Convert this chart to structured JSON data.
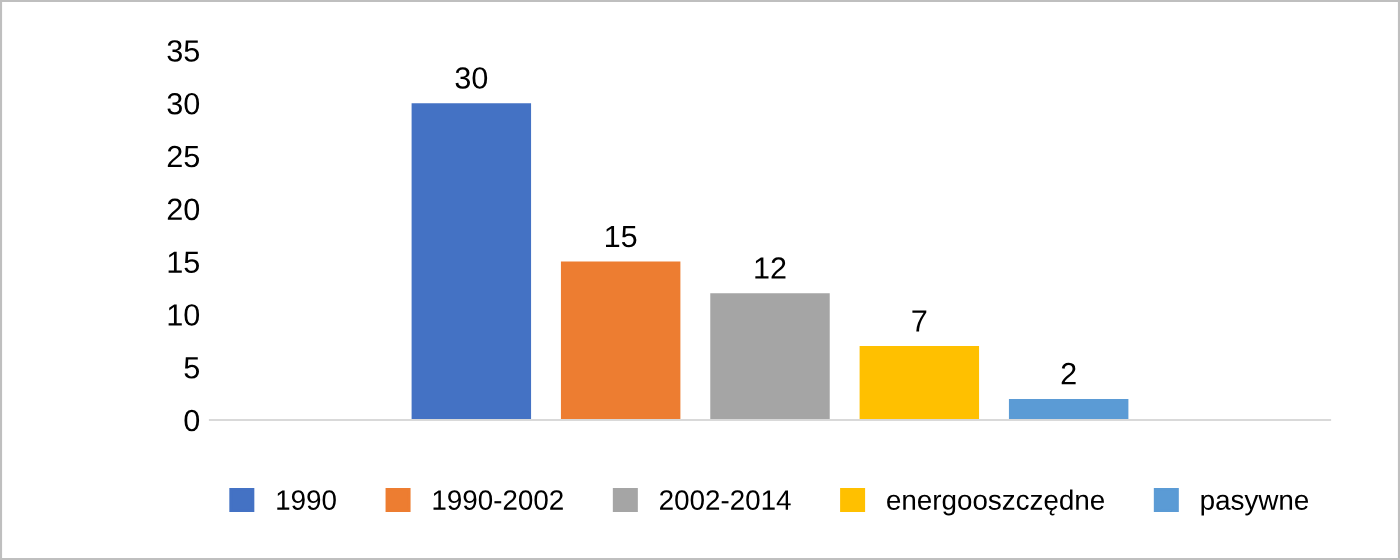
{
  "chart_data": {
    "type": "bar",
    "categories": [
      null
    ],
    "series": [
      {
        "name": "1990",
        "color": "#4472c4",
        "values": [
          30
        ]
      },
      {
        "name": "1990-2002",
        "color": "#ed7d31",
        "values": [
          15
        ]
      },
      {
        "name": "2002-2014",
        "color": "#a5a5a5",
        "values": [
          12
        ]
      },
      {
        "name": "energooszczędne",
        "color": "#ffc000",
        "values": [
          7
        ]
      },
      {
        "name": "pasywne",
        "color": "#5b9bd5",
        "values": [
          2
        ]
      }
    ],
    "ylim": [
      0,
      35
    ],
    "yticks": [
      0,
      5,
      10,
      15,
      20,
      25,
      30,
      35
    ],
    "data_labels": true,
    "legend": "bottom",
    "grid": false
  }
}
